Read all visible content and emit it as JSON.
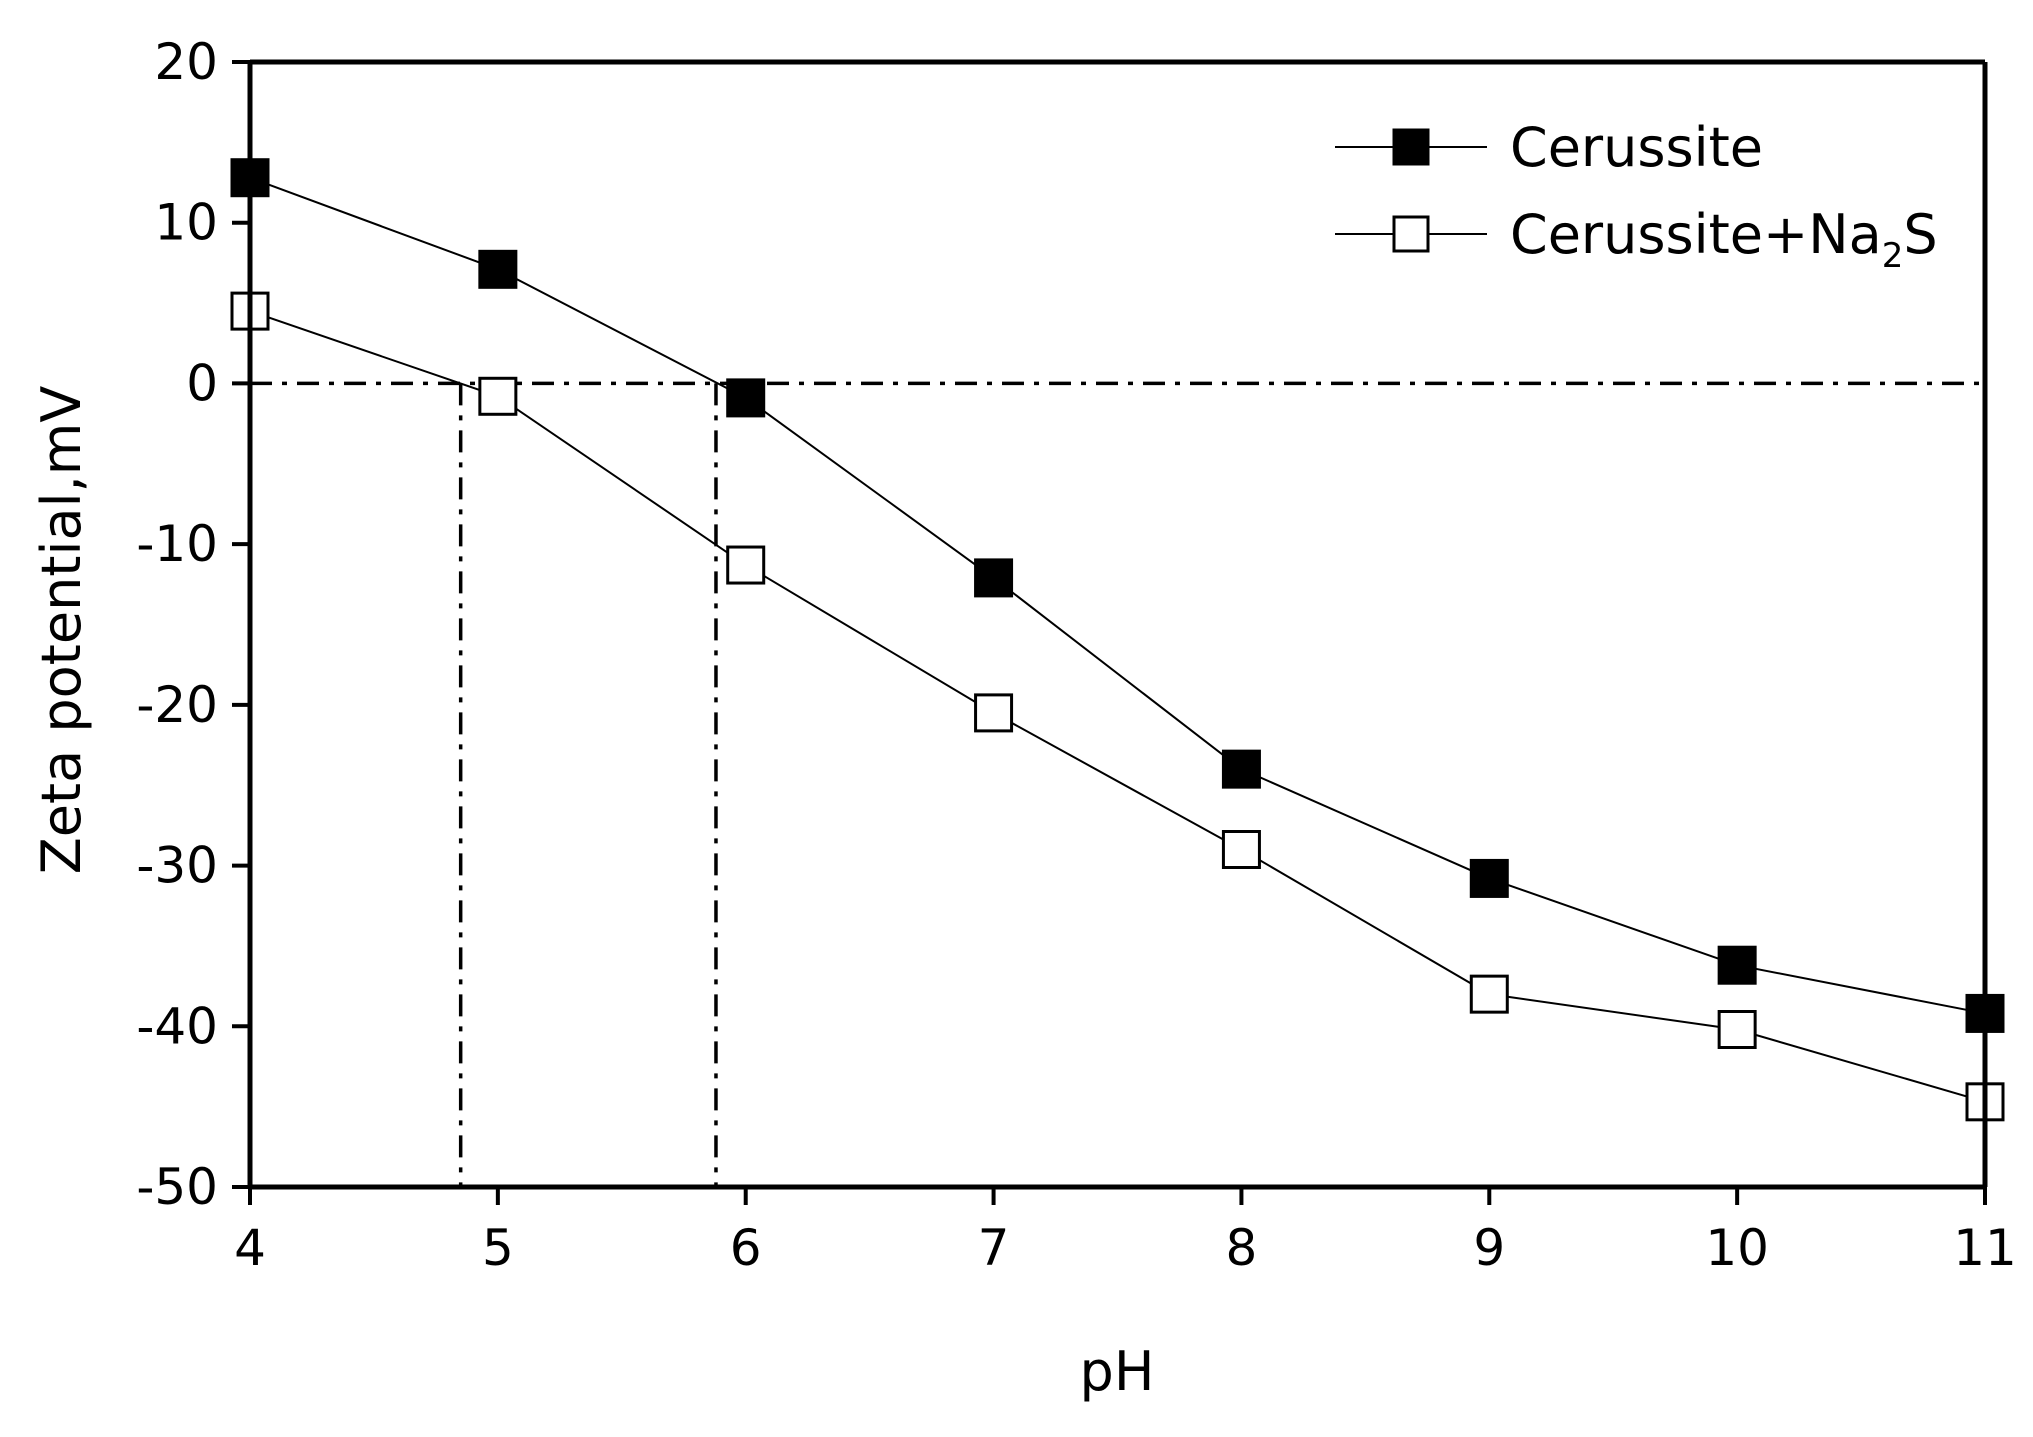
{
  "chart_data": {
    "type": "line",
    "title": "",
    "xlabel": "pH",
    "ylabel": "Zeta potential,mV",
    "xlim": [
      4,
      11
    ],
    "ylim": [
      -50,
      20
    ],
    "x_ticks": [
      4,
      5,
      6,
      7,
      8,
      9,
      10,
      11
    ],
    "y_ticks": [
      20,
      10,
      0,
      -10,
      -20,
      -30,
      -40,
      -50
    ],
    "x_tick_labels": [
      "4",
      "5",
      "6",
      "7",
      "8",
      "9",
      "10",
      "11"
    ],
    "y_tick_labels": [
      "20",
      "10",
      "0",
      "-10",
      "-20",
      "-30",
      "-40",
      "-50"
    ],
    "grid": false,
    "legend_position": "top-right",
    "x": [
      4,
      5,
      6,
      7,
      8,
      9,
      10,
      11
    ],
    "series": [
      {
        "name": "Cerussite",
        "legend_text": "Cerussite",
        "marker": "filled-square",
        "color": "#000000",
        "values": [
          12.8,
          7.1,
          -0.9,
          -12.1,
          -24.0,
          -30.8,
          -36.2,
          -39.2
        ]
      },
      {
        "name": "Cerussite+Na2S",
        "legend_text": "Cerussite+Na",
        "legend_subscript": "2",
        "legend_suffix": "S",
        "marker": "open-square",
        "color": "#000000",
        "values": [
          4.5,
          -0.8,
          -11.3,
          -20.5,
          -29.0,
          -38.0,
          -40.2,
          -44.7
        ]
      }
    ],
    "reference_lines": [
      {
        "orientation": "horizontal",
        "y": 0,
        "style": "dash-dot"
      },
      {
        "orientation": "vertical",
        "x": 4.85,
        "y_from": -50,
        "y_to": 0,
        "style": "dash-dot"
      },
      {
        "orientation": "vertical",
        "x": 5.88,
        "y_from": -50,
        "y_to": 0,
        "style": "dash-dot"
      }
    ]
  }
}
